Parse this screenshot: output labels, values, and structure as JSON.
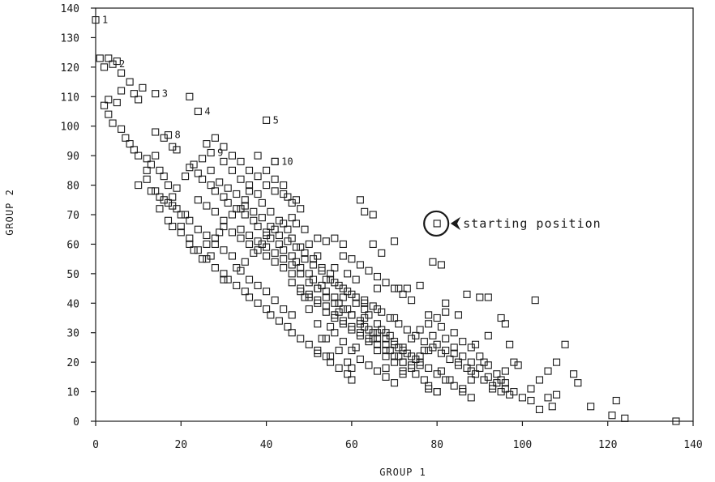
{
  "chart_data": {
    "type": "scatter",
    "xlabel": "GROUP 1",
    "ylabel": "GROUP 2",
    "xlim": [
      0,
      140
    ],
    "ylim": [
      0,
      140
    ],
    "x_ticks": [
      0,
      20,
      40,
      60,
      80,
      100,
      120,
      140
    ],
    "y_ticks": [
      0,
      10,
      20,
      30,
      40,
      50,
      60,
      70,
      80,
      90,
      100,
      110,
      120,
      130,
      140
    ],
    "grid": false,
    "legend": "none",
    "marker": "open-square",
    "color": "#1a1a1a",
    "labeled_points": [
      {
        "label": "1",
        "x": 0,
        "y": 136
      },
      {
        "label": "2",
        "x": 4,
        "y": 121
      },
      {
        "label": "3",
        "x": 14,
        "y": 111
      },
      {
        "label": "4",
        "x": 24,
        "y": 105
      },
      {
        "label": "5",
        "x": 40,
        "y": 102
      },
      {
        "label": "8",
        "x": 17,
        "y": 97
      },
      {
        "label": "9",
        "x": 27,
        "y": 91
      },
      {
        "label": "10",
        "x": 42,
        "y": 88
      }
    ],
    "highlight": {
      "label": "starting position",
      "x": 80,
      "y": 67
    },
    "points": [
      [
        136,
        0
      ],
      [
        124,
        1
      ],
      [
        121,
        2
      ],
      [
        122,
        7
      ],
      [
        116,
        5
      ],
      [
        112,
        16
      ],
      [
        113,
        13
      ],
      [
        108,
        9
      ],
      [
        106,
        8
      ],
      [
        107,
        5
      ],
      [
        104,
        4
      ],
      [
        102,
        7
      ],
      [
        110,
        26
      ],
      [
        103,
        41
      ],
      [
        99,
        19
      ],
      [
        98,
        20
      ],
      [
        95,
        14
      ],
      [
        93,
        11
      ],
      [
        96,
        17
      ],
      [
        97,
        26
      ],
      [
        95,
        35
      ],
      [
        96,
        33
      ],
      [
        92,
        29
      ],
      [
        91,
        20
      ],
      [
        89,
        26
      ],
      [
        88,
        17
      ],
      [
        92,
        42
      ],
      [
        90,
        42
      ],
      [
        87,
        43
      ],
      [
        85,
        36
      ],
      [
        85,
        20
      ],
      [
        84,
        23
      ],
      [
        82,
        24
      ],
      [
        83,
        14
      ],
      [
        80,
        10
      ],
      [
        81,
        17
      ],
      [
        86,
        11
      ],
      [
        88,
        14
      ],
      [
        78,
        11
      ],
      [
        77,
        24
      ],
      [
        79,
        29
      ],
      [
        81,
        32
      ],
      [
        78,
        36
      ],
      [
        82,
        40
      ],
      [
        79,
        54
      ],
      [
        81,
        53
      ],
      [
        76,
        46
      ],
      [
        73,
        45
      ],
      [
        71,
        45
      ],
      [
        70,
        35
      ],
      [
        71,
        25
      ],
      [
        68,
        18
      ],
      [
        72,
        16
      ],
      [
        68,
        30
      ],
      [
        65,
        28
      ],
      [
        66,
        38
      ],
      [
        63,
        35
      ],
      [
        63,
        40
      ],
      [
        66,
        45
      ],
      [
        67,
        57
      ],
      [
        70,
        61
      ],
      [
        65,
        60
      ],
      [
        65,
        70
      ],
      [
        63,
        71
      ],
      [
        62,
        75
      ],
      [
        58,
        56
      ],
      [
        61,
        48
      ],
      [
        59,
        50
      ],
      [
        56,
        52
      ],
      [
        58,
        42
      ],
      [
        57,
        37
      ],
      [
        55,
        32
      ],
      [
        53,
        28
      ],
      [
        57,
        24
      ],
      [
        61,
        25
      ],
      [
        59,
        20
      ],
      [
        60,
        18
      ],
      [
        55,
        22
      ],
      [
        52,
        23
      ],
      [
        52,
        33
      ],
      [
        50,
        38
      ],
      [
        49,
        42
      ],
      [
        52,
        45
      ],
      [
        54,
        48
      ],
      [
        52,
        56
      ],
      [
        50,
        60
      ],
      [
        52,
        62
      ],
      [
        49,
        65
      ],
      [
        47,
        67
      ],
      [
        46,
        69
      ],
      [
        48,
        72
      ],
      [
        47,
        75
      ],
      [
        45,
        76
      ],
      [
        44,
        80
      ],
      [
        42,
        82
      ],
      [
        40,
        85
      ],
      [
        42,
        88
      ],
      [
        38,
        90
      ],
      [
        36,
        78
      ],
      [
        35,
        75
      ],
      [
        34,
        72
      ],
      [
        32,
        70
      ],
      [
        30,
        68
      ],
      [
        29,
        64
      ],
      [
        28,
        62
      ],
      [
        26,
        60
      ],
      [
        27,
        56
      ],
      [
        25,
        55
      ],
      [
        23,
        58
      ],
      [
        22,
        62
      ],
      [
        20,
        66
      ],
      [
        21,
        70
      ],
      [
        19,
        72
      ],
      [
        18,
        76
      ],
      [
        17,
        80
      ],
      [
        16,
        83
      ],
      [
        15,
        85
      ],
      [
        13,
        87
      ],
      [
        12,
        89
      ],
      [
        10,
        90
      ],
      [
        9,
        92
      ],
      [
        8,
        94
      ],
      [
        7,
        96
      ],
      [
        6,
        99
      ],
      [
        4,
        101
      ],
      [
        3,
        104
      ],
      [
        2,
        107
      ],
      [
        3,
        109
      ],
      [
        5,
        108
      ],
      [
        6,
        112
      ],
      [
        9,
        111
      ],
      [
        10,
        109
      ],
      [
        11,
        113
      ],
      [
        8,
        115
      ],
      [
        6,
        118
      ],
      [
        5,
        122
      ],
      [
        3,
        123
      ],
      [
        1,
        123
      ],
      [
        2,
        120
      ],
      [
        22,
        110
      ],
      [
        14,
        98
      ],
      [
        16,
        96
      ],
      [
        18,
        93
      ],
      [
        19,
        92
      ],
      [
        22,
        86
      ],
      [
        24,
        84
      ],
      [
        25,
        82
      ],
      [
        27,
        80
      ],
      [
        28,
        78
      ],
      [
        30,
        76
      ],
      [
        31,
        74
      ],
      [
        33,
        72
      ],
      [
        35,
        70
      ],
      [
        37,
        68
      ],
      [
        38,
        66
      ],
      [
        40,
        64
      ],
      [
        41,
        62
      ],
      [
        43,
        60
      ],
      [
        44,
        58
      ],
      [
        46,
        56
      ],
      [
        47,
        54
      ],
      [
        48,
        52
      ],
      [
        50,
        50
      ],
      [
        51,
        48
      ],
      [
        53,
        46
      ],
      [
        54,
        44
      ],
      [
        56,
        42
      ],
      [
        57,
        40
      ],
      [
        59,
        38
      ],
      [
        60,
        36
      ],
      [
        62,
        34
      ],
      [
        63,
        32
      ],
      [
        65,
        30
      ],
      [
        66,
        28
      ],
      [
        68,
        26
      ],
      [
        69,
        24
      ],
      [
        71,
        22
      ],
      [
        72,
        20
      ],
      [
        74,
        18
      ],
      [
        75,
        16
      ],
      [
        77,
        14
      ],
      [
        78,
        12
      ],
      [
        80,
        10
      ],
      [
        28,
        96
      ],
      [
        26,
        94
      ],
      [
        30,
        88
      ],
      [
        32,
        85
      ],
      [
        34,
        82
      ],
      [
        36,
        80
      ],
      [
        38,
        77
      ],
      [
        39,
        74
      ],
      [
        41,
        71
      ],
      [
        43,
        68
      ],
      [
        45,
        65
      ],
      [
        46,
        62
      ],
      [
        48,
        59
      ],
      [
        49,
        57
      ],
      [
        51,
        55
      ],
      [
        53,
        52
      ],
      [
        55,
        50
      ],
      [
        56,
        47
      ],
      [
        58,
        45
      ],
      [
        60,
        43
      ],
      [
        61,
        40
      ],
      [
        63,
        38
      ],
      [
        64,
        36
      ],
      [
        66,
        33
      ],
      [
        67,
        31
      ],
      [
        69,
        29
      ],
      [
        70,
        27
      ],
      [
        72,
        25
      ],
      [
        73,
        23
      ],
      [
        75,
        21
      ],
      [
        76,
        19
      ],
      [
        15,
        72
      ],
      [
        17,
        68
      ],
      [
        18,
        66
      ],
      [
        20,
        64
      ],
      [
        22,
        60
      ],
      [
        24,
        58
      ],
      [
        26,
        55
      ],
      [
        28,
        52
      ],
      [
        30,
        50
      ],
      [
        31,
        48
      ],
      [
        33,
        46
      ],
      [
        35,
        44
      ],
      [
        36,
        42
      ],
      [
        38,
        40
      ],
      [
        40,
        38
      ],
      [
        41,
        36
      ],
      [
        43,
        34
      ],
      [
        45,
        32
      ],
      [
        46,
        30
      ],
      [
        48,
        28
      ],
      [
        50,
        26
      ],
      [
        52,
        24
      ],
      [
        54,
        22
      ],
      [
        55,
        20
      ],
      [
        57,
        18
      ],
      [
        59,
        16
      ],
      [
        60,
        14
      ],
      [
        30,
        48
      ],
      [
        33,
        52
      ],
      [
        35,
        54
      ],
      [
        37,
        57
      ],
      [
        39,
        60
      ],
      [
        40,
        63
      ],
      [
        42,
        65
      ],
      [
        44,
        67
      ],
      [
        46,
        50
      ],
      [
        48,
        45
      ],
      [
        50,
        43
      ],
      [
        52,
        41
      ],
      [
        54,
        39
      ],
      [
        56,
        36
      ],
      [
        58,
        34
      ],
      [
        60,
        32
      ],
      [
        62,
        30
      ],
      [
        64,
        28
      ],
      [
        66,
        26
      ],
      [
        68,
        24
      ],
      [
        70,
        22
      ],
      [
        72,
        20
      ],
      [
        74,
        28
      ],
      [
        76,
        31
      ],
      [
        78,
        33
      ],
      [
        80,
        35
      ],
      [
        82,
        37
      ],
      [
        84,
        30
      ],
      [
        86,
        27
      ],
      [
        88,
        25
      ],
      [
        90,
        22
      ],
      [
        92,
        19
      ],
      [
        94,
        16
      ],
      [
        96,
        13
      ],
      [
        98,
        10
      ],
      [
        100,
        8
      ],
      [
        102,
        11
      ],
      [
        104,
        14
      ],
      [
        106,
        17
      ],
      [
        108,
        20
      ],
      [
        24,
        75
      ],
      [
        26,
        73
      ],
      [
        28,
        71
      ],
      [
        30,
        66
      ],
      [
        32,
        64
      ],
      [
        34,
        62
      ],
      [
        36,
        60
      ],
      [
        38,
        58
      ],
      [
        40,
        56
      ],
      [
        42,
        54
      ],
      [
        44,
        52
      ],
      [
        46,
        47
      ],
      [
        48,
        44
      ],
      [
        50,
        42
      ],
      [
        52,
        40
      ],
      [
        54,
        37
      ],
      [
        56,
        35
      ],
      [
        58,
        33
      ],
      [
        60,
        31
      ],
      [
        62,
        29
      ],
      [
        64,
        27
      ],
      [
        66,
        24
      ],
      [
        68,
        22
      ],
      [
        70,
        20
      ],
      [
        14,
        90
      ],
      [
        12,
        85
      ],
      [
        10,
        80
      ],
      [
        13,
        78
      ],
      [
        15,
        76
      ],
      [
        17,
        74
      ],
      [
        19,
        79
      ],
      [
        21,
        83
      ],
      [
        23,
        87
      ],
      [
        25,
        89
      ],
      [
        27,
        85
      ],
      [
        29,
        81
      ],
      [
        31,
        79
      ],
      [
        33,
        77
      ],
      [
        35,
        73
      ],
      [
        37,
        71
      ],
      [
        39,
        69
      ],
      [
        41,
        66
      ],
      [
        43,
        63
      ],
      [
        45,
        61
      ],
      [
        47,
        59
      ],
      [
        49,
        55
      ],
      [
        51,
        53
      ],
      [
        53,
        51
      ],
      [
        55,
        48
      ],
      [
        57,
        46
      ],
      [
        59,
        44
      ],
      [
        61,
        42
      ],
      [
        63,
        41
      ],
      [
        65,
        39
      ],
      [
        67,
        37
      ],
      [
        69,
        35
      ],
      [
        71,
        33
      ],
      [
        73,
        31
      ],
      [
        75,
        29
      ],
      [
        77,
        27
      ],
      [
        79,
        25
      ],
      [
        81,
        23
      ],
      [
        83,
        21
      ],
      [
        85,
        19
      ],
      [
        87,
        18
      ],
      [
        89,
        16
      ],
      [
        91,
        14
      ],
      [
        93,
        12
      ],
      [
        95,
        10
      ],
      [
        97,
        9
      ],
      [
        56,
        62
      ],
      [
        54,
        61
      ],
      [
        58,
        60
      ],
      [
        60,
        55
      ],
      [
        62,
        53
      ],
      [
        64,
        51
      ],
      [
        66,
        49
      ],
      [
        68,
        47
      ],
      [
        70,
        45
      ],
      [
        72,
        43
      ],
      [
        74,
        41
      ],
      [
        46,
        74
      ],
      [
        44,
        77
      ],
      [
        42,
        78
      ],
      [
        40,
        80
      ],
      [
        38,
        83
      ],
      [
        36,
        85
      ],
      [
        34,
        88
      ],
      [
        32,
        90
      ],
      [
        30,
        93
      ],
      [
        46,
        36
      ],
      [
        44,
        38
      ],
      [
        42,
        41
      ],
      [
        40,
        44
      ],
      [
        38,
        46
      ],
      [
        36,
        48
      ],
      [
        34,
        51
      ],
      [
        32,
        56
      ],
      [
        30,
        58
      ],
      [
        28,
        60
      ],
      [
        26,
        63
      ],
      [
        24,
        65
      ],
      [
        22,
        68
      ],
      [
        20,
        70
      ],
      [
        18,
        73
      ],
      [
        16,
        75
      ],
      [
        14,
        78
      ],
      [
        12,
        82
      ],
      [
        54,
        28
      ],
      [
        56,
        30
      ],
      [
        58,
        27
      ],
      [
        60,
        24
      ],
      [
        62,
        21
      ],
      [
        64,
        19
      ],
      [
        66,
        17
      ],
      [
        68,
        15
      ],
      [
        70,
        13
      ],
      [
        72,
        17
      ],
      [
        74,
        19
      ],
      [
        76,
        22
      ],
      [
        78,
        24
      ],
      [
        80,
        26
      ],
      [
        82,
        28
      ],
      [
        84,
        25
      ],
      [
        86,
        22
      ],
      [
        88,
        20
      ],
      [
        90,
        18
      ],
      [
        92,
        15
      ],
      [
        94,
        13
      ],
      [
        96,
        11
      ],
      [
        34,
        65
      ],
      [
        36,
        63
      ],
      [
        38,
        61
      ],
      [
        40,
        59
      ],
      [
        42,
        57
      ],
      [
        44,
        55
      ],
      [
        46,
        53
      ],
      [
        48,
        50
      ],
      [
        50,
        47
      ],
      [
        52,
        45
      ],
      [
        54,
        42
      ],
      [
        56,
        40
      ],
      [
        58,
        38
      ],
      [
        60,
        36
      ],
      [
        62,
        33
      ],
      [
        64,
        31
      ],
      [
        66,
        30
      ],
      [
        68,
        28
      ],
      [
        70,
        26
      ],
      [
        72,
        24
      ],
      [
        74,
        22
      ],
      [
        76,
        20
      ],
      [
        78,
        18
      ],
      [
        80,
        16
      ],
      [
        82,
        14
      ],
      [
        84,
        12
      ],
      [
        86,
        10
      ],
      [
        88,
        8
      ]
    ]
  }
}
